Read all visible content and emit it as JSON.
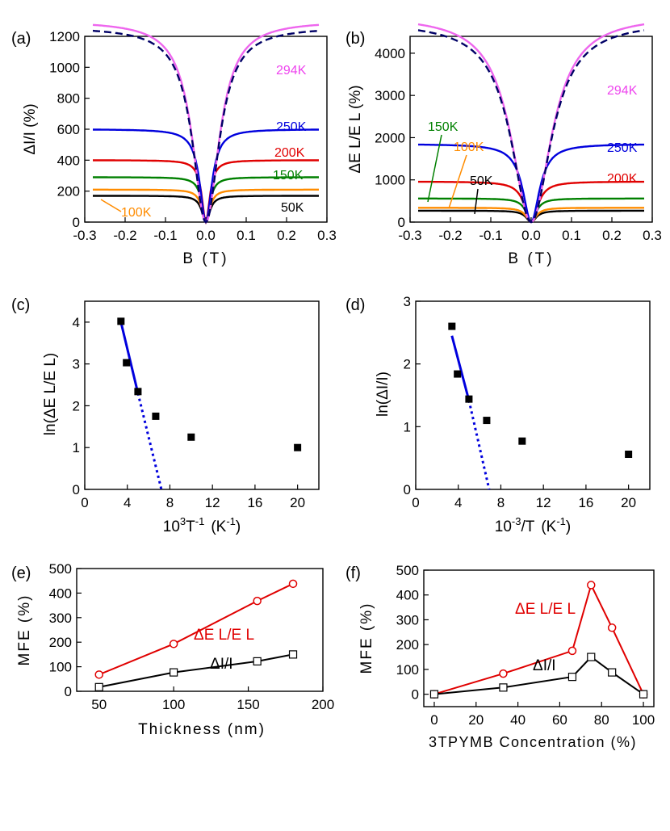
{
  "chart_data": [
    {
      "id": "a",
      "panel_label": "(a)",
      "type": "line",
      "xlabel": "B (T)",
      "ylabel": "ΔI/I (%)",
      "xlim": [
        -0.3,
        0.3
      ],
      "ylim": [
        0,
        1200
      ],
      "xticks": [
        -0.3,
        -0.2,
        -0.1,
        0.0,
        0.1,
        0.2,
        0.3
      ],
      "xtick_labels": [
        "-0.3",
        "-0.2",
        "-0.1",
        "0.0",
        "0.1",
        "0.2",
        "0.3"
      ],
      "yticks": [
        0,
        200,
        400,
        600,
        800,
        1000,
        1200
      ],
      "ytick_labels": [
        "0",
        "200",
        "400",
        "600",
        "800",
        "1000",
        "1200"
      ],
      "model": "sat",
      "series": [
        {
          "name": "50K",
          "sat": 170,
          "b0": 0.012,
          "color": "#000000",
          "label": "50K"
        },
        {
          "name": "100K",
          "sat": 210,
          "b0": 0.012,
          "color": "#ff8c00",
          "label": "100K"
        },
        {
          "name": "150K",
          "sat": 290,
          "b0": 0.012,
          "color": "#008000",
          "label": "150K"
        },
        {
          "name": "200K",
          "sat": 400,
          "b0": 0.012,
          "color": "#e00000",
          "label": "200K"
        },
        {
          "name": "250K",
          "sat": 600,
          "b0": 0.018,
          "color": "#0000dd",
          "label": "250K"
        },
        {
          "name": "294K",
          "sat": 1300,
          "b0": 0.04,
          "color": "#ee66ee",
          "label": "294K",
          "fit": true,
          "fit_color": "#000066"
        }
      ]
    },
    {
      "id": "b",
      "panel_label": "(b)",
      "type": "line",
      "xlabel": "B (T)",
      "ylabel": "ΔE L/E L (%)",
      "xlim": [
        -0.3,
        0.3
      ],
      "ylim": [
        0,
        4400
      ],
      "xticks": [
        -0.3,
        -0.2,
        -0.1,
        0.0,
        0.1,
        0.2,
        0.3
      ],
      "xtick_labels": [
        "-0.3",
        "-0.2",
        "-0.1",
        "0.0",
        "0.1",
        "0.2",
        "0.3"
      ],
      "yticks": [
        0,
        1000,
        2000,
        3000,
        4000
      ],
      "ytick_labels": [
        "0",
        "1000",
        "2000",
        "3000",
        "4000"
      ],
      "model": "sat",
      "series": [
        {
          "name": "50K",
          "sat": 270,
          "b0": 0.015,
          "color": "#000000",
          "label": "50K"
        },
        {
          "name": "100K",
          "sat": 340,
          "b0": 0.015,
          "color": "#ff8c00",
          "label": "100K"
        },
        {
          "name": "150K",
          "sat": 560,
          "b0": 0.015,
          "color": "#008000",
          "label": "150K"
        },
        {
          "name": "200K",
          "sat": 960,
          "b0": 0.02,
          "color": "#e00000",
          "label": "200K"
        },
        {
          "name": "250K",
          "sat": 1850,
          "b0": 0.025,
          "color": "#0000dd",
          "label": "250K"
        },
        {
          "name": "294K",
          "sat": 4900,
          "b0": 0.06,
          "color": "#ee66ee",
          "label": "294K",
          "fit": true,
          "fit_color": "#000066"
        }
      ]
    },
    {
      "id": "c",
      "panel_label": "(c)",
      "type": "scatter",
      "xlabel_main": "10",
      "xlabel_sup1": "3",
      "xlabel_mid": "T",
      "xlabel_sup2": "-1",
      "xlabel_unit": "(K",
      "xlabel_sup3": "-1",
      "xlabel_end": ")",
      "ylabel": "ln(ΔE L/E L)",
      "xlim": [
        0,
        22
      ],
      "ylim": [
        0,
        4.5
      ],
      "xticks": [
        0,
        4,
        8,
        12,
        16,
        20
      ],
      "xtick_labels": [
        "0",
        "4",
        "8",
        "12",
        "16",
        "20"
      ],
      "yticks": [
        0,
        1,
        2,
        3,
        4
      ],
      "ytick_labels": [
        "0",
        "1",
        "2",
        "3",
        "4"
      ],
      "points": [
        [
          3.4,
          4.02
        ],
        [
          3.92,
          3.03
        ],
        [
          5.0,
          2.34
        ],
        [
          6.67,
          1.75
        ],
        [
          10.0,
          1.25
        ],
        [
          20.0,
          1.0
        ]
      ],
      "fit_solid": [
        [
          3.4,
          4.0
        ],
        [
          5.0,
          2.3
        ]
      ],
      "fit_dotted": [
        [
          5.0,
          2.3
        ],
        [
          7.2,
          0.0
        ]
      ]
    },
    {
      "id": "d",
      "panel_label": "(d)",
      "type": "scatter",
      "xlabel_main": "10",
      "xlabel_sup1": "-3",
      "xlabel_mid": "/T",
      "xlabel_sup2": "",
      "xlabel_unit": "(K",
      "xlabel_sup3": "-1",
      "xlabel_end": ")",
      "ylabel": "ln(ΔI/I)",
      "xlim": [
        0,
        22
      ],
      "ylim": [
        0,
        3
      ],
      "xticks": [
        0,
        4,
        8,
        12,
        16,
        20
      ],
      "xtick_labels": [
        "0",
        "4",
        "8",
        "12",
        "16",
        "20"
      ],
      "yticks": [
        0,
        1,
        2,
        3
      ],
      "ytick_labels": [
        "0",
        "1",
        "2",
        "3"
      ],
      "points": [
        [
          3.4,
          2.6
        ],
        [
          3.92,
          1.84
        ],
        [
          5.0,
          1.44
        ],
        [
          6.67,
          1.1
        ],
        [
          10.0,
          0.77
        ],
        [
          20.0,
          0.56
        ]
      ],
      "fit_solid": [
        [
          3.4,
          2.45
        ],
        [
          5.0,
          1.42
        ]
      ],
      "fit_dotted": [
        [
          5.0,
          1.42
        ],
        [
          6.9,
          0.0
        ]
      ]
    },
    {
      "id": "e",
      "panel_label": "(e)",
      "type": "line",
      "xlabel": "Thickness (nm)",
      "ylabel": "MFE (%)",
      "xlim": [
        35,
        200
      ],
      "ylim": [
        0,
        500
      ],
      "xticks": [
        50,
        100,
        150,
        200
      ],
      "xtick_labels": [
        "50",
        "100",
        "150",
        "200"
      ],
      "yticks": [
        0,
        100,
        200,
        300,
        400,
        500
      ],
      "ytick_labels": [
        "0",
        "100",
        "200",
        "300",
        "400",
        "500"
      ],
      "series": [
        {
          "name": "ΔE L/E L",
          "color": "#e00000",
          "marker": "circle",
          "x": [
            50,
            100,
            156,
            180
          ],
          "values": [
            68,
            193,
            368,
            438
          ]
        },
        {
          "name": "ΔI/I",
          "color": "#000000",
          "marker": "square",
          "x": [
            50,
            100,
            156,
            180
          ],
          "values": [
            17,
            77,
            122,
            150
          ]
        }
      ],
      "annotations": [
        "ΔE L/E L",
        "ΔI/I"
      ]
    },
    {
      "id": "f",
      "panel_label": "(f)",
      "type": "line",
      "xlabel": "3TPYMB Concentration (%)",
      "ylabel": "MFE (%)",
      "xlim": [
        -5,
        105
      ],
      "ylim": [
        -50,
        500
      ],
      "xticks": [
        0,
        20,
        40,
        60,
        80,
        100
      ],
      "xtick_labels": [
        "0",
        "20",
        "40",
        "60",
        "80",
        "100"
      ],
      "yticks": [
        0,
        100,
        200,
        300,
        400,
        500
      ],
      "ytick_labels": [
        "0",
        "100",
        "200",
        "300",
        "400",
        "500"
      ],
      "series": [
        {
          "name": "ΔE L/E L",
          "color": "#e00000",
          "marker": "circle",
          "x": [
            0,
            33,
            66,
            75,
            85,
            100
          ],
          "values": [
            0,
            83,
            175,
            440,
            268,
            0
          ]
        },
        {
          "name": "ΔI/I",
          "color": "#000000",
          "marker": "square",
          "x": [
            0,
            33,
            66,
            75,
            85,
            100
          ],
          "values": [
            0,
            27,
            70,
            150,
            88,
            0
          ]
        }
      ],
      "annotations": [
        "ΔE L/E L",
        "ΔI/I"
      ]
    }
  ]
}
